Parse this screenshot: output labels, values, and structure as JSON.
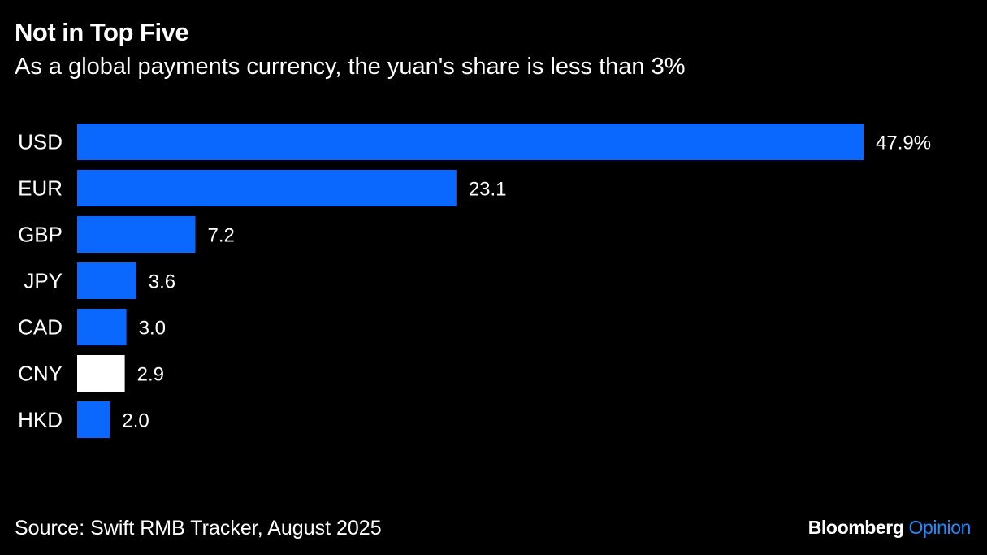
{
  "header": {
    "title": "Not in Top Five",
    "subtitle": "As a global payments currency, the yuan's share is less than 3%"
  },
  "footer": {
    "source": "Source: Swift RMB Tracker, August 2025",
    "brand_part1": "Bloomberg",
    "brand_part2": "Opinion"
  },
  "colors": {
    "bar": "#0A68FF",
    "highlight": "#FFFFFF",
    "brand_accent": "#1F8BFF",
    "background": "#000000"
  },
  "chart_data": {
    "type": "bar",
    "orientation": "horizontal",
    "categories": [
      "USD",
      "EUR",
      "GBP",
      "JPY",
      "CAD",
      "CNY",
      "HKD"
    ],
    "values": [
      47.9,
      23.1,
      7.2,
      3.6,
      3.0,
      2.9,
      2.0
    ],
    "value_labels": [
      "47.9%",
      "23.1",
      "7.2",
      "3.6",
      "3.0",
      "2.9",
      "2.0"
    ],
    "highlight_category": "CNY",
    "title": "Not in Top Five",
    "subtitle": "As a global payments currency, the yuan's share is less than 3%",
    "xlim": [
      0,
      47.9
    ],
    "grid": false,
    "legend": "none"
  }
}
